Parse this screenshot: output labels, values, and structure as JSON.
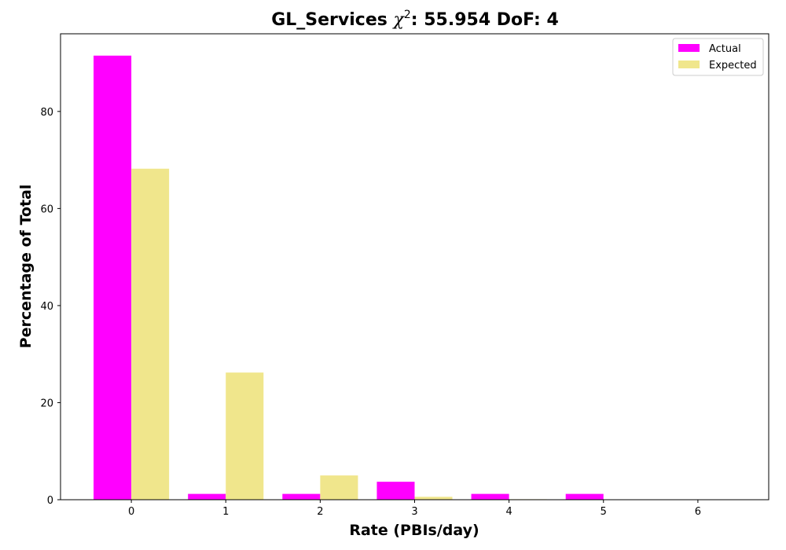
{
  "chart_data": {
    "type": "bar",
    "title_prefix": "GL_Services ",
    "title_chi": "χ",
    "title_sup": "2",
    "title_suffix": ": 55.954 DoF: 4",
    "xlabel": "Rate (PBIs/day)",
    "ylabel": "Percentage of Total",
    "categories": [
      "0",
      "1",
      "2",
      "3",
      "4",
      "5",
      "6"
    ],
    "x": [
      0,
      1,
      2,
      3,
      4,
      5,
      6
    ],
    "xlim": [
      -0.75,
      6.75
    ],
    "ylim": [
      0,
      96
    ],
    "yticks": [
      0,
      20,
      40,
      60,
      80
    ],
    "legend_position": "top-right",
    "series": [
      {
        "name": "Actual",
        "color": "#ff00ff",
        "values": [
          91.5,
          1.2,
          1.2,
          3.7,
          1.2,
          1.2,
          0
        ]
      },
      {
        "name": "Expected",
        "color": "#f0e68c",
        "values": [
          68.2,
          26.2,
          5.0,
          0.6,
          0.1,
          0.0,
          0.0
        ]
      }
    ]
  }
}
